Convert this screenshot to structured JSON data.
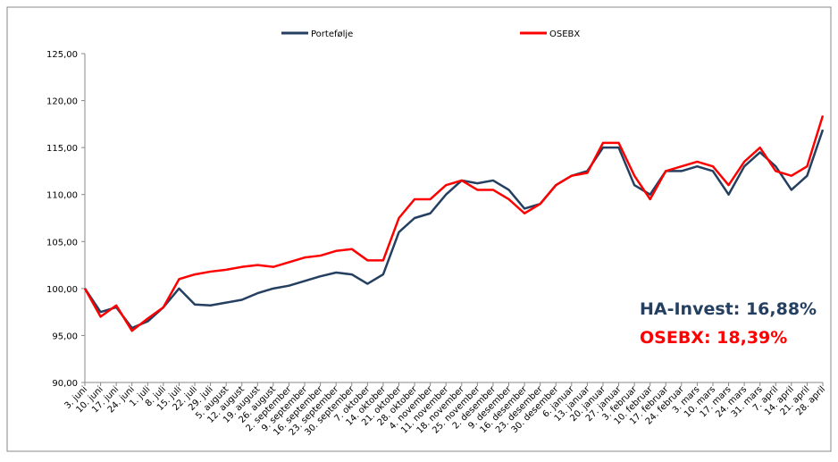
{
  "chart_data": {
    "type": "line",
    "categories": [
      "3. juni",
      "10. juni",
      "17. juni",
      "24. juni",
      "1. juli",
      "8. juli",
      "15. juli",
      "22. juli",
      "29. juli",
      "5. august",
      "12. august",
      "19. august",
      "26. august",
      "2. september",
      "9. september",
      "16. september",
      "23. september",
      "30. september",
      "7. oktober",
      "14. oktober",
      "21. oktober",
      "28. oktober",
      "4. november",
      "11. november",
      "18. november",
      "25. november",
      "2. desember",
      "9. desember",
      "16. desember",
      "23. desember",
      "30. desember",
      "6. januar",
      "13. januar",
      "20. januar",
      "27. januar",
      "3. februar",
      "10. februar",
      "17. februar",
      "24. februar",
      "3. mars",
      "10. mars",
      "17. mars",
      "24. mars",
      "31. mars",
      "7. april",
      "14. april",
      "21. april",
      "28. april"
    ],
    "series": [
      {
        "name": "Portefølje",
        "color": "#243f60",
        "values": [
          100,
          97.5,
          98,
          95.8,
          96.5,
          98,
          100,
          98.3,
          98.2,
          98.5,
          98.8,
          99.5,
          100,
          100.3,
          100.8,
          101.3,
          101.7,
          101.5,
          100.5,
          101.5,
          106,
          107.5,
          108,
          110,
          111.5,
          111.2,
          111.5,
          110.5,
          108.5,
          109,
          111,
          112,
          112.5,
          115,
          115,
          111,
          110,
          112.5,
          112.5,
          113,
          112.5,
          110,
          113,
          114.5,
          113,
          110.5,
          112,
          116.9
        ]
      },
      {
        "name": "OSEBX",
        "color": "#ff0000",
        "values": [
          100,
          97,
          98.2,
          95.5,
          96.8,
          98,
          101,
          101.5,
          101.8,
          102,
          102.3,
          102.5,
          102.3,
          102.8,
          103.3,
          103.5,
          104,
          104.2,
          103,
          103,
          107.5,
          109.5,
          109.5,
          111,
          111.5,
          110.5,
          110.5,
          109.5,
          108,
          109,
          111,
          112,
          112.3,
          115.5,
          115.5,
          112,
          109.5,
          112.5,
          113,
          113.5,
          113,
          111,
          113.5,
          115,
          112.5,
          112,
          113,
          118.4
        ]
      }
    ],
    "ylim": [
      90,
      125
    ],
    "yticks": [
      {
        "value": 90,
        "label": "90,00"
      },
      {
        "value": 95,
        "label": "95,00"
      },
      {
        "value": 100,
        "label": "100,00"
      },
      {
        "value": 105,
        "label": "105,00"
      },
      {
        "value": 110,
        "label": "110,00"
      },
      {
        "value": 115,
        "label": "115,00"
      },
      {
        "value": 120,
        "label": "120,00"
      },
      {
        "value": 125,
        "label": "125,00"
      }
    ],
    "annotations": [
      {
        "text": "HA-Invest: 16,88%",
        "color": "#243f60"
      },
      {
        "text": "OSEBX: 18,39%",
        "color": "#ff0000"
      }
    ]
  }
}
